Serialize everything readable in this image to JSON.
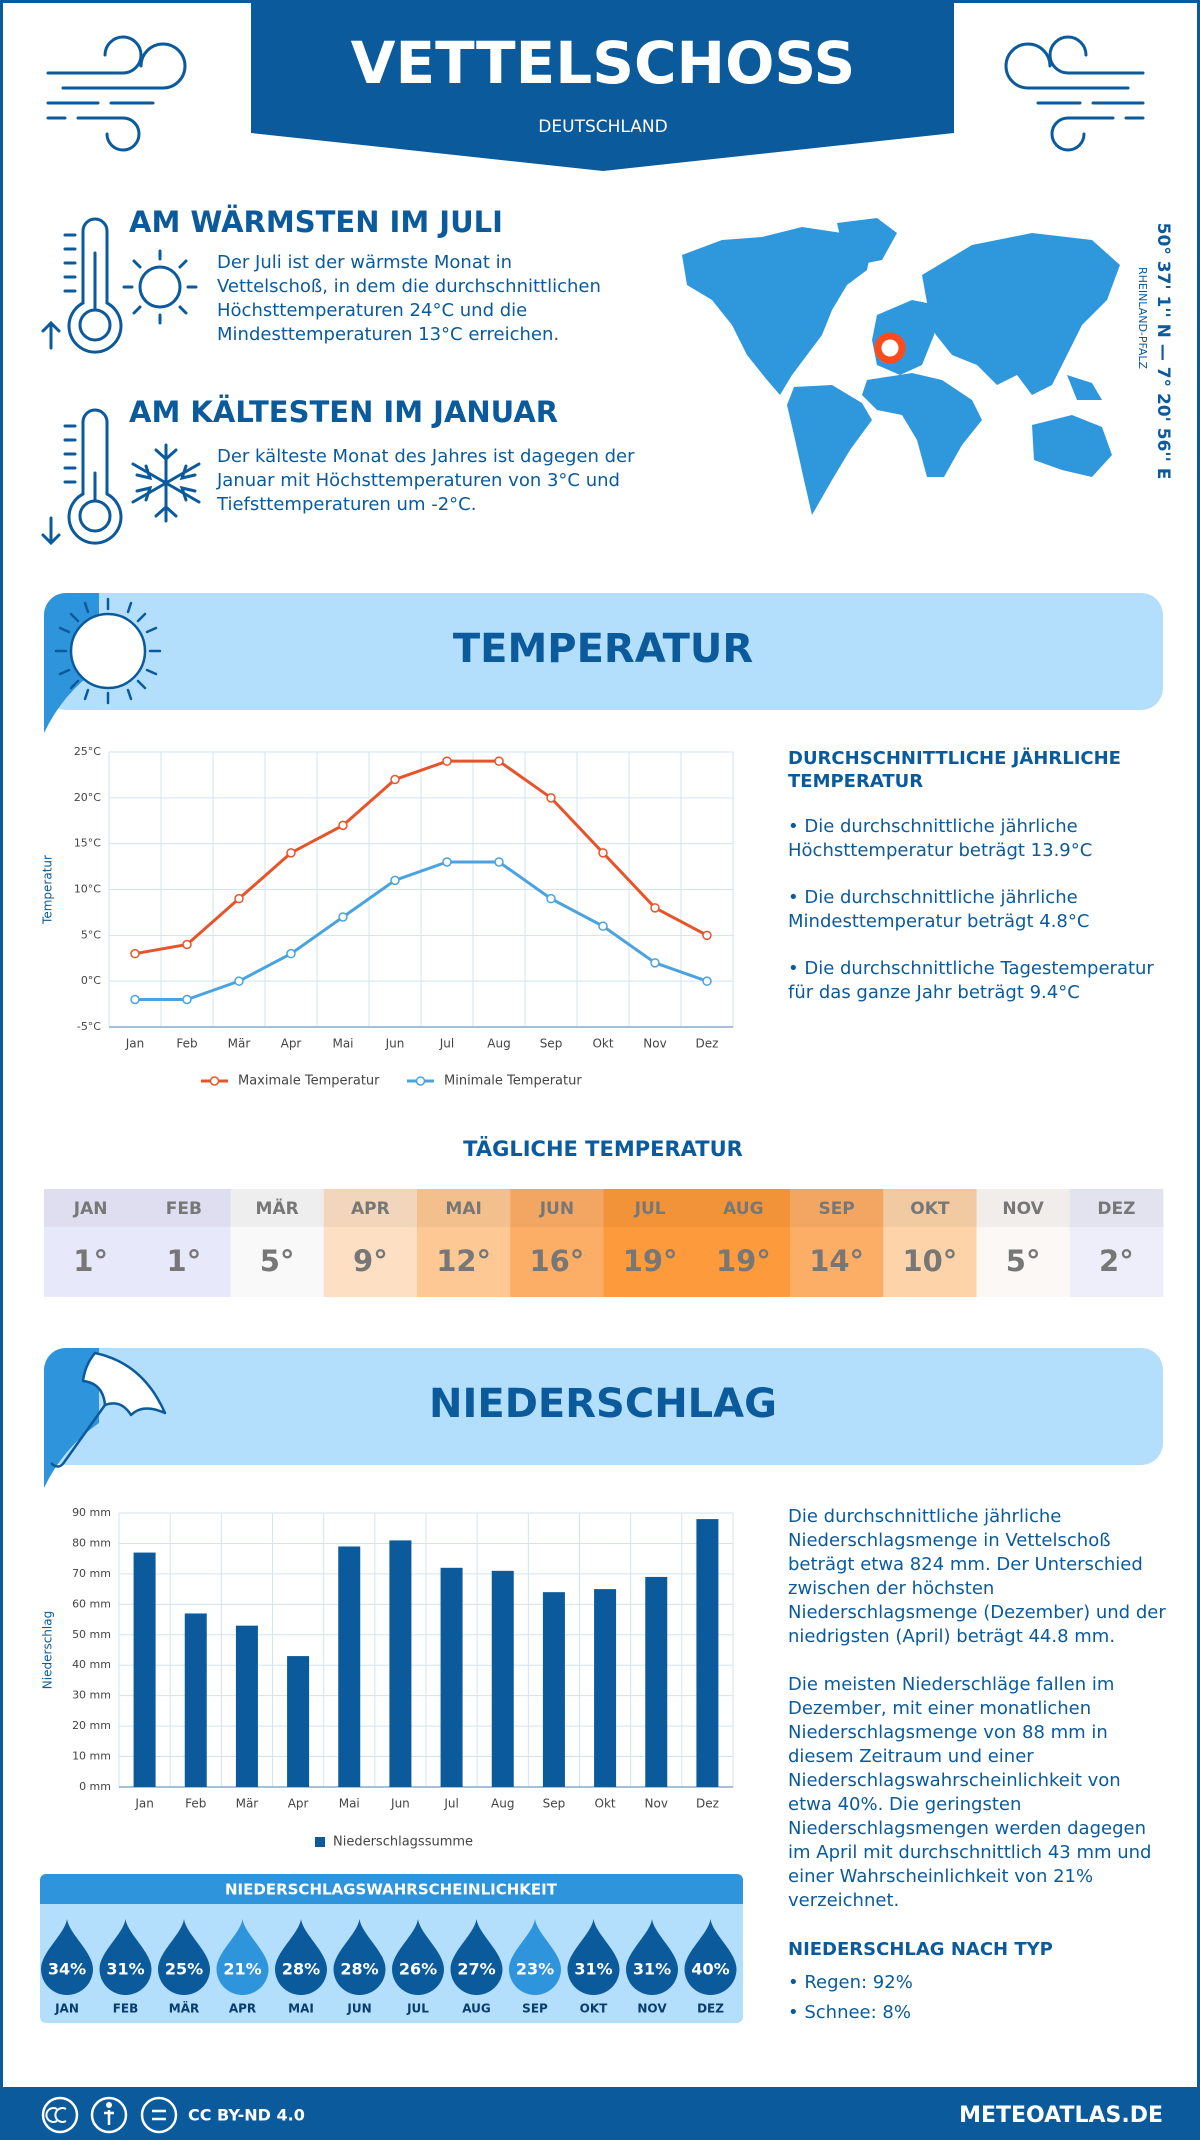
{
  "header": {
    "title": "VETTELSCHOSS",
    "subtitle": "DEUTSCHLAND"
  },
  "warmest": {
    "heading": "AM WÄRMSTEN IM JULI",
    "text": "Der Juli ist der wärmste Monat in Vettelschoß, in dem die durchschnittlichen Höchsttemperaturen 24°C und die Mindesttemperaturen 13°C erreichen."
  },
  "coldest": {
    "heading": "AM KÄLTESTEN IM JANUAR",
    "text": "Der kälteste Monat des Jahres ist dagegen der Januar mit Höchsttemperaturen von 3°C und Tiefsttemperaturen um -2°C."
  },
  "location": {
    "coordinates": "50° 37' 1'' N — 7° 20' 56'' E",
    "region": "RHEINLAND-PFALZ"
  },
  "temperature_section": {
    "title": "TEMPERATUR",
    "summary_heading": "DURCHSCHNITTLICHE JÄHRLICHE TEMPERATUR",
    "summary_points": [
      "• Die durchschnittliche jährliche Höchsttemperatur beträgt 13.9°C",
      "• Die durchschnittliche jährliche Mindesttemperatur beträgt 4.8°C",
      "• Die durchschnittliche Tagestemperatur für das ganze Jahr beträgt 9.4°C"
    ]
  },
  "daily_temperature": {
    "title": "TÄGLICHE TEMPERATUR",
    "months": [
      "JAN",
      "FEB",
      "MÄR",
      "APR",
      "MAI",
      "JUN",
      "JUL",
      "AUG",
      "SEP",
      "OKT",
      "NOV",
      "DEZ"
    ],
    "values": [
      "1°",
      "1°",
      "5°",
      "9°",
      "12°",
      "16°",
      "19°",
      "19°",
      "14°",
      "10°",
      "5°",
      "2°"
    ],
    "colors": [
      "#e8e8fb",
      "#e8e8fb",
      "#f9f9f9",
      "#fde0c4",
      "#fdc894",
      "#fdae66",
      "#fd9a3c",
      "#fd9a3c",
      "#fdae66",
      "#fdd4aa",
      "#fbf8f5",
      "#eeeefb"
    ]
  },
  "precipitation_section": {
    "title": "NIEDERSCHLAG",
    "paragraphs": [
      "Die durchschnittliche jährliche Niederschlagsmenge in Vettelschoß beträgt etwa 824 mm. Der Unterschied zwischen der höchsten Niederschlagsmenge (Dezember) und der niedrigsten (April) beträgt 44.8 mm.",
      "Die meisten Niederschläge fallen im Dezember, mit einer monatlichen Niederschlagsmenge von 88 mm in diesem Zeitraum und einer Niederschlagswahrscheinlichkeit von etwa 40%. Die geringsten Niederschlagsmengen werden dagegen im April mit durchschnittlich 43 mm und einer Wahrscheinlichkeit von 21% verzeichnet."
    ],
    "type_heading": "NIEDERSCHLAG NACH TYP",
    "types": [
      "• Regen: 92%",
      "• Schnee: 8%"
    ]
  },
  "precipitation_probability": {
    "title": "NIEDERSCHLAGSWAHRSCHEINLICHKEIT",
    "months": [
      "JAN",
      "FEB",
      "MÄR",
      "APR",
      "MAI",
      "JUN",
      "JUL",
      "AUG",
      "SEP",
      "OKT",
      "NOV",
      "DEZ"
    ],
    "values": [
      "34%",
      "31%",
      "25%",
      "21%",
      "28%",
      "28%",
      "26%",
      "27%",
      "23%",
      "31%",
      "31%",
      "40%"
    ],
    "colors": [
      "#0a5a9c",
      "#0a5a9c",
      "#0a5a9c",
      "#2e95dc",
      "#0a5a9c",
      "#0a5a9c",
      "#0a5a9c",
      "#0a5a9c",
      "#2e95dc",
      "#0a5a9c",
      "#0a5a9c",
      "#0a5a9c"
    ]
  },
  "footer": {
    "license": "CC BY-ND 4.0",
    "site": "METEOATLAS.DE"
  },
  "chart_data": [
    {
      "type": "line",
      "y_label": "Temperatur",
      "categories": [
        "Jan",
        "Feb",
        "Mär",
        "Apr",
        "Mai",
        "Jun",
        "Jul",
        "Aug",
        "Sep",
        "Okt",
        "Nov",
        "Dez"
      ],
      "series": [
        {
          "name": "Maximale Temperatur",
          "color": "#e8542a",
          "values": [
            3,
            4,
            9,
            14,
            17,
            22,
            24,
            24,
            20,
            14,
            8,
            5
          ]
        },
        {
          "name": "Minimale Temperatur",
          "color": "#4aa3df",
          "values": [
            -2,
            -2,
            0,
            3,
            7,
            11,
            13,
            13,
            9,
            6,
            2,
            0
          ]
        }
      ],
      "ylim": [
        -5,
        25
      ],
      "yticks": [
        {
          "value": -5,
          "label": "-5°C"
        },
        {
          "value": 0,
          "label": "0°C"
        },
        {
          "value": 5,
          "label": "5°C"
        },
        {
          "value": 10,
          "label": "10°C"
        },
        {
          "value": 15,
          "label": "15°C"
        },
        {
          "value": 20,
          "label": "20°C"
        },
        {
          "value": 25,
          "label": "25°C"
        }
      ],
      "grid": true
    },
    {
      "type": "bar",
      "y_label": "Niederschlag",
      "categories": [
        "Jan",
        "Feb",
        "Mär",
        "Apr",
        "Mai",
        "Jun",
        "Jul",
        "Aug",
        "Sep",
        "Okt",
        "Nov",
        "Dez"
      ],
      "series": [
        {
          "name": "Niederschlagssumme",
          "color": "#0a5a9c",
          "values": [
            77,
            57,
            53,
            43,
            79,
            81,
            72,
            71,
            64,
            65,
            69,
            88
          ]
        }
      ],
      "ylim": [
        0,
        90
      ],
      "yticks": [
        {
          "value": 0,
          "label": "0 mm"
        },
        {
          "value": 10,
          "label": "10 mm"
        },
        {
          "value": 20,
          "label": "20 mm"
        },
        {
          "value": 30,
          "label": "30 mm"
        },
        {
          "value": 40,
          "label": "40 mm"
        },
        {
          "value": 50,
          "label": "50 mm"
        },
        {
          "value": 60,
          "label": "60 mm"
        },
        {
          "value": 70,
          "label": "70 mm"
        },
        {
          "value": 80,
          "label": "80 mm"
        },
        {
          "value": 90,
          "label": "90 mm"
        }
      ],
      "grid": true
    }
  ]
}
